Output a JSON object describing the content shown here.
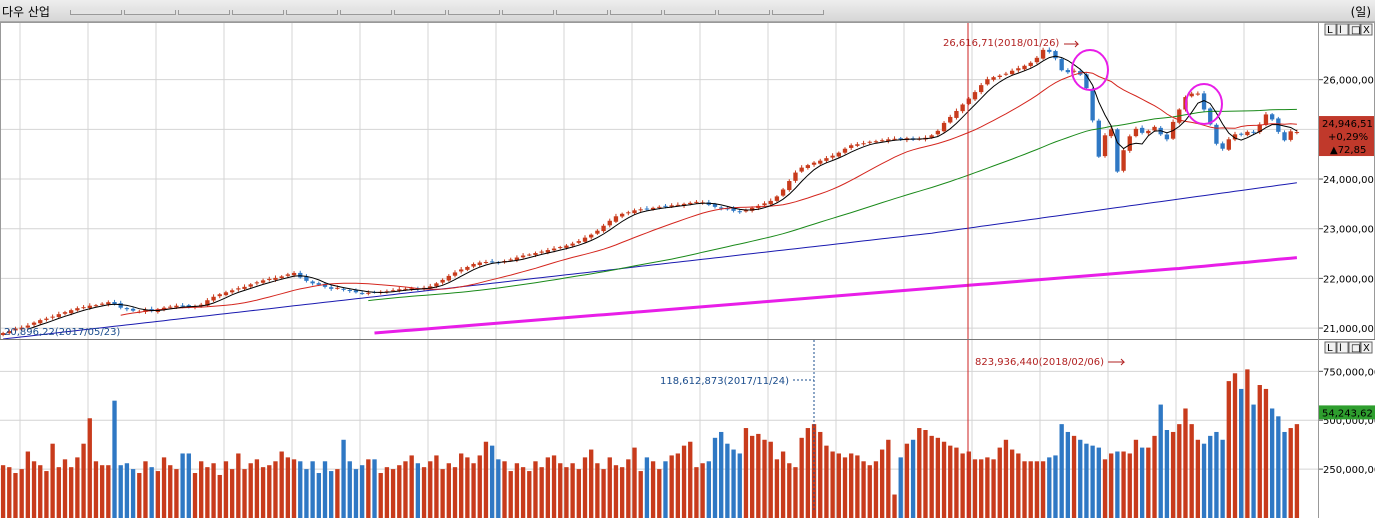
{
  "header": {
    "title": "다우 산업",
    "period_label": "(일)",
    "window_buttons": [
      "L",
      "l",
      "□",
      "X"
    ]
  },
  "colors": {
    "up": "#c83b1c",
    "down": "#2f78c4",
    "ma5": "#000000",
    "ma20": "#d4261e",
    "ma60": "#1a8a1a",
    "ma120": "#1a1ab0",
    "ma240": "#e81ee8",
    "crosshair": "#cc2222",
    "grid": "#d4d4d4"
  },
  "chart_data": [
    {
      "type": "candlestick",
      "name": "price",
      "y_ticks": [
        "21,000,00",
        "22,000,00",
        "23,000,00",
        "24,000,00",
        "25,000,00",
        "26,000,00"
      ],
      "ylim": [
        20800,
        27000
      ],
      "grid": true,
      "current_value_label": "24,946,51",
      "change_percent_label": "+0,29%",
      "change_points_label": "▲72,85",
      "annotations": {
        "high": "26,616,71(2018/01/26)",
        "low": "20,896,22(2017/05/23)"
      },
      "highlight_circles": [
        "2018/01/26",
        "2018/03/12"
      ],
      "moving_averages": [
        "MA5",
        "MA20",
        "MA60",
        "MA120",
        "MA240"
      ],
      "series": [
        {
          "name": "close",
          "values": [
            20900,
            20940,
            20990,
            21010,
            21050,
            21110,
            21160,
            21190,
            21230,
            21280,
            21320,
            21360,
            21400,
            21420,
            21450,
            21460,
            21490,
            21520,
            21480,
            21410,
            21380,
            21350,
            21330,
            21370,
            21340,
            21380,
            21410,
            21430,
            21450,
            21440,
            21420,
            21440,
            21470,
            21560,
            21630,
            21680,
            21720,
            21760,
            21800,
            21830,
            21880,
            21920,
            21960,
            21990,
            22010,
            22040,
            22080,
            22110,
            22020,
            21950,
            21900,
            21870,
            21830,
            21790,
            21810,
            21770,
            21750,
            21720,
            21700,
            21710,
            21720,
            21730,
            21740,
            21760,
            21780,
            21790,
            21800,
            21780,
            21810,
            21840,
            21900,
            21970,
            22050,
            22120,
            22180,
            22230,
            22290,
            22320,
            22330,
            22340,
            22320,
            22350,
            22380,
            22420,
            22460,
            22480,
            22510,
            22540,
            22570,
            22600,
            22630,
            22660,
            22700,
            22750,
            22820,
            22880,
            22960,
            23060,
            23160,
            23250,
            23300,
            23330,
            23370,
            23390,
            23400,
            23420,
            23440,
            23450,
            23470,
            23480,
            23500,
            23520,
            23540,
            23530,
            23480,
            23440,
            23410,
            23390,
            23360,
            23340,
            23380,
            23420,
            23460,
            23510,
            23560,
            23650,
            23790,
            23960,
            24130,
            24230,
            24280,
            24330,
            24370,
            24420,
            24470,
            24530,
            24610,
            24680,
            24700,
            24720,
            24750,
            24760,
            24780,
            24800,
            24810,
            24800,
            24820,
            24790,
            24810,
            24830,
            24880,
            24970,
            25130,
            25250,
            25370,
            25500,
            25620,
            25750,
            25890,
            26010,
            26050,
            26080,
            26120,
            26180,
            26230,
            26280,
            26340,
            26440,
            26600,
            26560,
            26430,
            26190,
            26150,
            26180,
            26100,
            25830,
            25180,
            24450,
            24880,
            25000,
            24150,
            24580,
            24860,
            25010,
            24930,
            24970,
            25050,
            24900,
            24800,
            25150,
            25400,
            25650,
            25720,
            25720,
            25400,
            25100,
            24710,
            24610,
            24800,
            24900,
            24900,
            24950,
            24930,
            25100,
            25300,
            25200,
            24950,
            24780,
            24960,
            24946
          ]
        }
      ]
    },
    {
      "type": "bar",
      "name": "volume",
      "y_ticks": [
        "250,000,00",
        "500,000,00",
        "750,000,00"
      ],
      "ylim": [
        0,
        900000000
      ],
      "current_value_label": "54,243,62",
      "annotations": {
        "high": "823,936,440(2018/02/06)",
        "low": "118,612,873(2017/11/24)"
      },
      "values": [
        270,
        260,
        230,
        250,
        340,
        290,
        270,
        240,
        380,
        260,
        300,
        260,
        310,
        380,
        510,
        290,
        270,
        270,
        600,
        270,
        280,
        250,
        230,
        290,
        260,
        240,
        310,
        270,
        250,
        330,
        330,
        230,
        290,
        260,
        280,
        220,
        290,
        250,
        330,
        250,
        280,
        300,
        260,
        270,
        290,
        340,
        310,
        300,
        290,
        250,
        290,
        230,
        290,
        240,
        250,
        400,
        290,
        250,
        270,
        300,
        300,
        230,
        260,
        250,
        270,
        290,
        320,
        280,
        260,
        290,
        320,
        250,
        280,
        260,
        330,
        310,
        280,
        320,
        390,
        370,
        300,
        290,
        240,
        280,
        260,
        240,
        290,
        260,
        310,
        320,
        280,
        260,
        280,
        250,
        310,
        350,
        280,
        250,
        310,
        270,
        260,
        300,
        360,
        240,
        310,
        290,
        250,
        290,
        320,
        330,
        370,
        390,
        260,
        280,
        290,
        410,
        440,
        380,
        350,
        330,
        460,
        420,
        430,
        400,
        390,
        300,
        340,
        280,
        260,
        410,
        460,
        480,
        440,
        370,
        340,
        330,
        310,
        330,
        320,
        290,
        270,
        290,
        350,
        400,
        120,
        310,
        380,
        400,
        460,
        450,
        420,
        410,
        390,
        370,
        360,
        330,
        340,
        300,
        300,
        310,
        300,
        360,
        400,
        350,
        330,
        290,
        290,
        290,
        290,
        310,
        320,
        480,
        440,
        420,
        400,
        380,
        370,
        360,
        300,
        330,
        340,
        340,
        330,
        400,
        360,
        360,
        420,
        580,
        450,
        440,
        480,
        560,
        480,
        400,
        380,
        420,
        440,
        400,
        700,
        740,
        660,
        760,
        580,
        680,
        660,
        560,
        520,
        440,
        460,
        480,
        340,
        420,
        530,
        500,
        410,
        450,
        460,
        420,
        440,
        450,
        420,
        620,
        380,
        440,
        350,
        370,
        390,
        310,
        370,
        320,
        380,
        450,
        300,
        390,
        300,
        610
      ]
    }
  ]
}
